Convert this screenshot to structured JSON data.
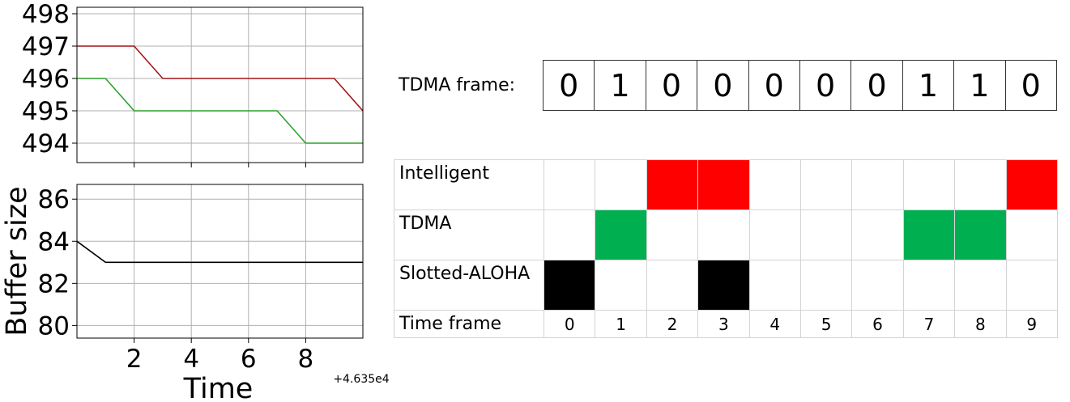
{
  "chart_data": [
    {
      "type": "line",
      "xlim": [
        46350,
        46360
      ],
      "ylim": [
        493.4,
        498.2
      ],
      "yticks": [
        494,
        495,
        496,
        497,
        498
      ],
      "xticks": [
        46352,
        46354,
        46356,
        46358
      ],
      "grid": true,
      "series": [
        {
          "color": "#a31515",
          "x": [
            46350,
            46351,
            46352,
            46353,
            46354,
            46355,
            46356,
            46357,
            46358,
            46359,
            46360
          ],
          "y": [
            497,
            497,
            497,
            496,
            496,
            496,
            496,
            496,
            496,
            496,
            495
          ]
        },
        {
          "color": "#2ca02c",
          "x": [
            46350,
            46351,
            46352,
            46353,
            46354,
            46355,
            46356,
            46357,
            46358,
            46359,
            46360
          ],
          "y": [
            496,
            496,
            495,
            495,
            495,
            495,
            495,
            495,
            494,
            494,
            494
          ]
        }
      ]
    },
    {
      "type": "line",
      "ylabel": "Buffer size",
      "xlabel": "Time",
      "offset_text": "+4.635e4",
      "xlim": [
        46350,
        46360
      ],
      "ylim": [
        79.4,
        86.7
      ],
      "yticks": [
        80,
        82,
        84,
        86
      ],
      "xticks": [
        46352,
        46354,
        46356,
        46358
      ],
      "xtick_labels": [
        "2",
        "4",
        "6",
        "8"
      ],
      "grid": true,
      "series": [
        {
          "color": "#000000",
          "x": [
            46350,
            46351,
            46352,
            46353,
            46354,
            46355,
            46356,
            46357,
            46358,
            46359,
            46360
          ],
          "y": [
            84,
            83,
            83,
            83,
            83,
            83,
            83,
            83,
            83,
            83,
            83
          ]
        }
      ]
    }
  ],
  "tdma_frame": {
    "label": "TDMA frame:",
    "bits": [
      "0",
      "1",
      "0",
      "0",
      "0",
      "0",
      "0",
      "1",
      "1",
      "0"
    ]
  },
  "schedule": {
    "rows": [
      {
        "label": "Intelligent",
        "color": "#ff0000",
        "active": [
          2,
          3,
          9
        ]
      },
      {
        "label": "TDMA",
        "color": "#00b050",
        "active": [
          1,
          7,
          8
        ]
      },
      {
        "label": "Slotted-ALOHA",
        "color": "#000000",
        "active": [
          0,
          3
        ]
      }
    ],
    "time_frame_label": "Time frame",
    "time_frames": [
      "0",
      "1",
      "2",
      "3",
      "4",
      "5",
      "6",
      "7",
      "8",
      "9"
    ]
  }
}
